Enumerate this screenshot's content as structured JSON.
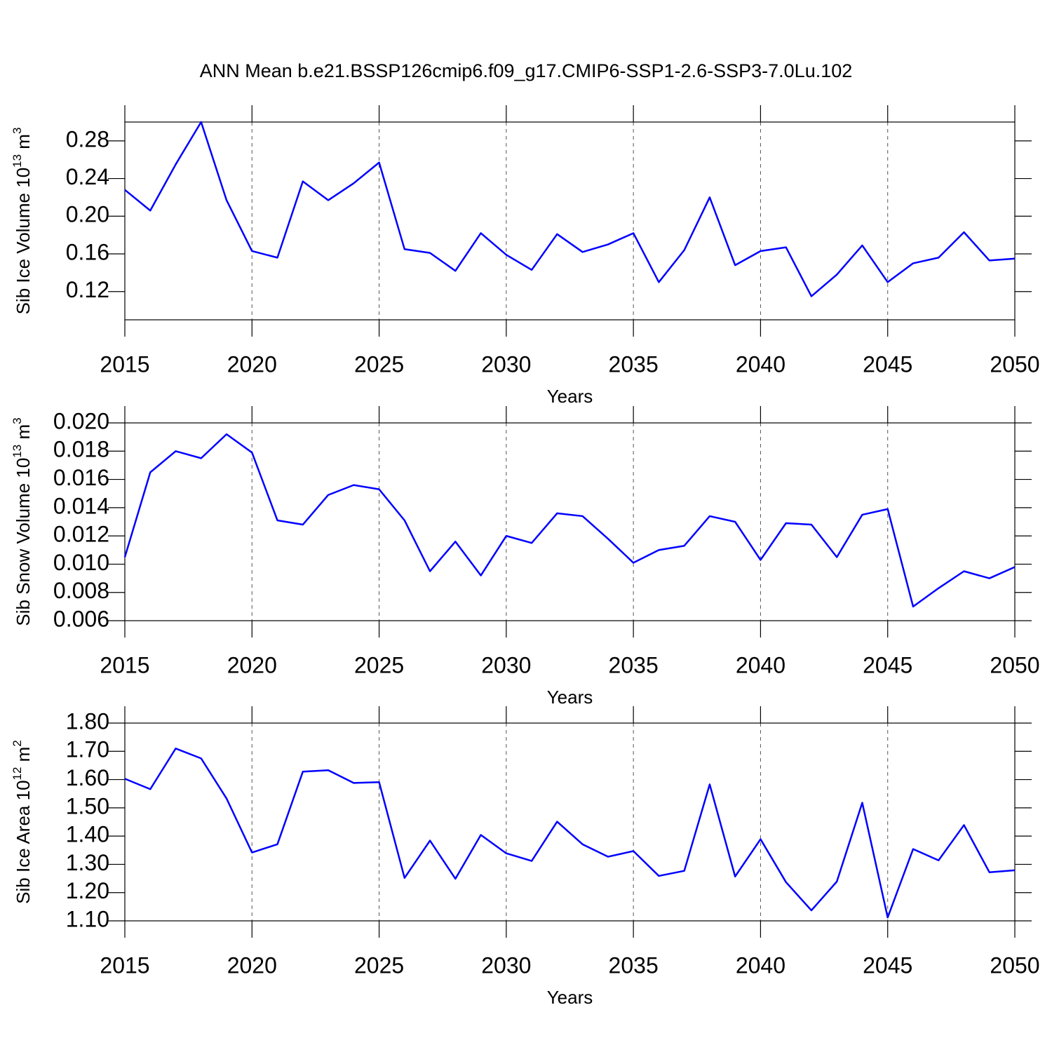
{
  "chart_data": [
    {
      "type": "line",
      "title": "ANN Mean b.e21.BSSP126cmip6.f09_g17.CMIP6-SSP1-2.6-SSP3-7.0Lu.102",
      "ylabel": [
        "Sib Ice Volume 10",
        "13",
        " m",
        "3"
      ],
      "xlabel": "Years",
      "color": "#0000ff",
      "xgrid": true,
      "x": [
        2015,
        2016,
        2017,
        2018,
        2019,
        2020,
        2021,
        2022,
        2023,
        2024,
        2025,
        2026,
        2027,
        2028,
        2029,
        2030,
        2031,
        2032,
        2033,
        2034,
        2035,
        2036,
        2037,
        2038,
        2039,
        2040,
        2041,
        2042,
        2043,
        2044,
        2045,
        2046,
        2047,
        2048,
        2049,
        2050
      ],
      "values": [
        0.228,
        0.206,
        0.255,
        0.3,
        0.217,
        0.163,
        0.156,
        0.237,
        0.217,
        0.235,
        0.257,
        0.165,
        0.161,
        0.142,
        0.182,
        0.159,
        0.143,
        0.181,
        0.162,
        0.17,
        0.182,
        0.13,
        0.164,
        0.22,
        0.148,
        0.163,
        0.167,
        0.115,
        0.138,
        0.169,
        0.13,
        0.15,
        0.156,
        0.183,
        0.153,
        0.155
      ],
      "xlim": [
        2015,
        2050
      ],
      "xticks": [
        2015,
        2020,
        2025,
        2030,
        2035,
        2040,
        2045,
        2050
      ],
      "ylim": [
        0.09,
        0.3
      ],
      "yticks": [
        0.28,
        0.24,
        {
          "value": 0.2,
          "label": "0.20"
        },
        0.16,
        0.12
      ]
    },
    {
      "type": "line",
      "ylabel": [
        "Sib Snow Volume 10",
        "13",
        " m",
        "3"
      ],
      "xlabel": "Years",
      "color": "#0000ff",
      "xgrid": true,
      "x": [
        2015,
        2016,
        2017,
        2018,
        2019,
        2020,
        2021,
        2022,
        2023,
        2024,
        2025,
        2026,
        2027,
        2028,
        2029,
        2030,
        2031,
        2032,
        2033,
        2034,
        2035,
        2036,
        2037,
        2038,
        2039,
        2040,
        2041,
        2042,
        2043,
        2044,
        2045,
        2046,
        2047,
        2048,
        2049,
        2050
      ],
      "values": [
        0.0105,
        0.0165,
        0.018,
        0.0175,
        0.0192,
        0.0179,
        0.0131,
        0.0128,
        0.0149,
        0.0156,
        0.0153,
        0.0131,
        0.0095,
        0.0116,
        0.0092,
        0.012,
        0.0115,
        0.0136,
        0.0134,
        0.0118,
        0.0101,
        0.011,
        0.0113,
        0.0134,
        0.013,
        0.0103,
        0.0129,
        0.0128,
        0.0105,
        0.0135,
        0.0139,
        0.007,
        0.0083,
        0.0095,
        0.009,
        0.0098
      ],
      "xlim": [
        2015,
        2050
      ],
      "xticks": [
        2015,
        2020,
        2025,
        2030,
        2035,
        2040,
        2045,
        2050
      ],
      "ylim": [
        0.006,
        0.02
      ],
      "yticks": [
        {
          "value": 0.02,
          "label": "0.020"
        },
        0.018,
        0.016,
        0.014,
        0.012,
        {
          "value": 0.01,
          "label": "0.010"
        },
        0.008,
        0.006
      ]
    },
    {
      "type": "line",
      "ylabel": [
        "Sib Ice Area 10",
        "12",
        " m",
        "2"
      ],
      "xlabel": "Years",
      "color": "#0000ff",
      "xgrid": true,
      "x": [
        2015,
        2016,
        2017,
        2018,
        2019,
        2020,
        2021,
        2022,
        2023,
        2024,
        2025,
        2026,
        2027,
        2028,
        2029,
        2030,
        2031,
        2032,
        2033,
        2034,
        2035,
        2036,
        2037,
        2038,
        2039,
        2040,
        2041,
        2042,
        2043,
        2044,
        2045,
        2046,
        2047,
        2048,
        2049,
        2050
      ],
      "values": [
        1.603,
        1.566,
        1.71,
        1.675,
        1.533,
        1.342,
        1.371,
        1.628,
        1.633,
        1.588,
        1.591,
        1.252,
        1.384,
        1.249,
        1.404,
        1.339,
        1.312,
        1.451,
        1.371,
        1.327,
        1.347,
        1.259,
        1.277,
        1.583,
        1.257,
        1.389,
        1.237,
        1.137,
        1.239,
        1.518,
        1.112,
        1.354,
        1.314,
        1.439,
        1.272,
        1.279
      ],
      "xlim": [
        2015,
        2050
      ],
      "xticks": [
        2015,
        2020,
        2025,
        2030,
        2035,
        2040,
        2045,
        2050
      ],
      "ylim": [
        1.1,
        1.8
      ],
      "yticks": [
        {
          "value": 1.8,
          "label": "1.80"
        },
        {
          "value": 1.7,
          "label": "1.70"
        },
        {
          "value": 1.6,
          "label": "1.60"
        },
        {
          "value": 1.5,
          "label": "1.50"
        },
        {
          "value": 1.4,
          "label": "1.40"
        },
        {
          "value": 1.3,
          "label": "1.30"
        },
        {
          "value": 1.2,
          "label": "1.20"
        },
        {
          "value": 1.1,
          "label": "1.10"
        }
      ]
    }
  ]
}
